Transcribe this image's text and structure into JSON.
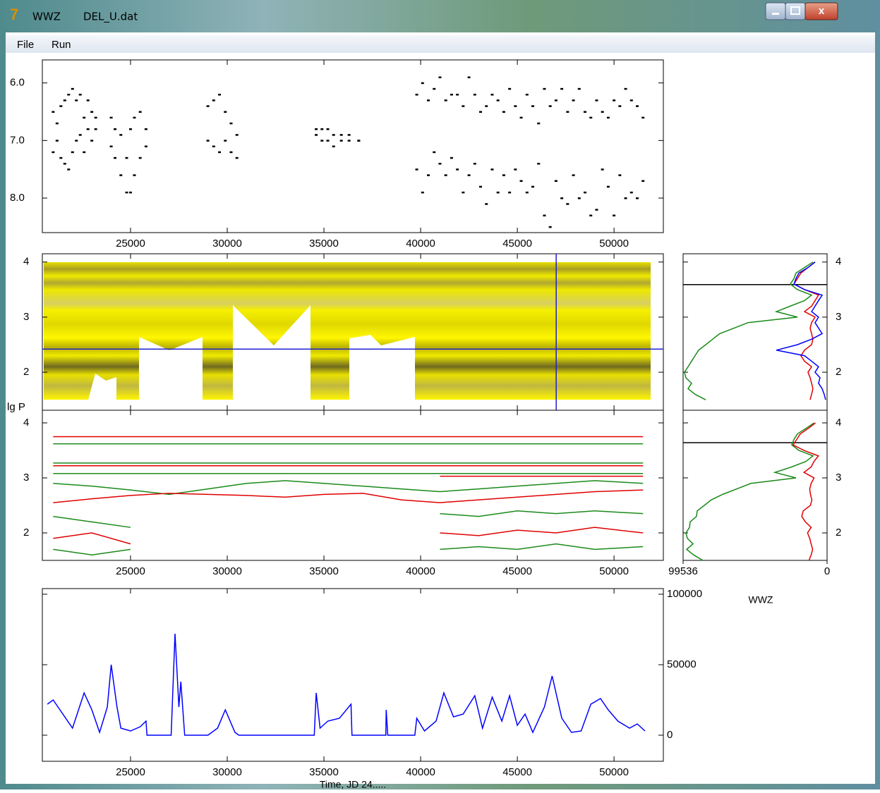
{
  "window": {
    "title": "WWZ",
    "file": "DEL_U.dat",
    "menu": [
      "File",
      "Run"
    ]
  },
  "chart_data": [
    {
      "type": "scatter",
      "xlim": [
        20440,
        52550
      ],
      "xticks": [
        25000,
        30000,
        35000,
        40000,
        45000,
        50000
      ],
      "ylim": [
        8.6,
        5.6
      ],
      "yticks": [
        {
          "value": 6,
          "label": "6.0"
        },
        {
          "value": 7,
          "label": "7.0"
        },
        {
          "value": 8,
          "label": "8.0"
        }
      ],
      "color": "#000000",
      "x": [
        21000,
        21200,
        21400,
        21600,
        21800,
        22000,
        22200,
        22400,
        22600,
        22800,
        23000,
        23200,
        24000,
        24200,
        24500,
        24800,
        25000,
        25200,
        25500,
        25800,
        29000,
        29300,
        29600,
        29900,
        30200,
        30500,
        34600,
        34900,
        35200,
        35500,
        35900,
        36300,
        36800,
        39800,
        40100,
        40400,
        40700,
        41000,
        41300,
        41600,
        41900,
        42200,
        42500,
        42800,
        43100,
        43400,
        43700,
        44000,
        44300,
        44600,
        44900,
        45200,
        45500,
        45800,
        46100,
        46400,
        46700,
        47000,
        47300,
        47600,
        47900,
        48200,
        48500,
        48800,
        49100,
        49400,
        49700,
        50000,
        50300,
        50600,
        50900,
        51200,
        51500
      ],
      "series": [
        {
          "values": [
            6.5,
            6.7,
            6.4,
            6.3,
            6.2,
            6.1,
            6.3,
            6.2,
            6.6,
            6.3,
            6.5,
            6.6,
            6.6,
            6.8,
            6.9,
            7.3,
            6.8,
            6.6,
            6.5,
            6.8,
            6.4,
            6.3,
            6.2,
            6.5,
            6.7,
            6.9,
            6.8,
            6.8,
            6.8,
            6.9,
            6.9,
            6.9,
            7.0,
            6.2,
            6.0,
            6.3,
            6.1,
            5.9,
            6.3,
            6.2,
            6.2,
            6.4,
            5.9,
            6.2,
            6.5,
            6.4,
            6.2,
            6.3,
            6.5,
            6.1,
            6.4,
            6.6,
            6.2,
            6.4,
            6.7,
            6.1,
            6.4,
            6.3,
            6.1,
            6.5,
            6.3,
            6.1,
            6.5,
            6.6,
            6.3,
            6.5,
            6.6,
            6.3,
            6.4,
            6.1,
            6.3,
            6.4,
            6.6
          ]
        },
        {
          "values": [
            7.2,
            7.0,
            7.3,
            7.4,
            7.5,
            7.2,
            7.0,
            6.9,
            7.2,
            6.8,
            7.0,
            6.8,
            7.1,
            7.3,
            7.6,
            7.9,
            7.9,
            7.6,
            7.3,
            7.1,
            7.0,
            7.1,
            7.2,
            7.0,
            7.2,
            7.3,
            6.9,
            7.0,
            7.0,
            7.1,
            7.0,
            7.0,
            7.0,
            7.5,
            7.9,
            7.6,
            7.2,
            7.4,
            7.6,
            7.3,
            7.5,
            7.9,
            7.6,
            7.4,
            7.8,
            8.1,
            7.5,
            7.9,
            7.6,
            7.9,
            7.5,
            7.7,
            7.9,
            7.8,
            7.4,
            8.3,
            8.5,
            7.7,
            8.0,
            8.1,
            7.6,
            8.0,
            7.9,
            8.3,
            8.2,
            7.5,
            7.8,
            8.3,
            7.6,
            8.0,
            7.9,
            8.0,
            7.7
          ]
        }
      ]
    },
    {
      "type": "heatmap",
      "xlim": [
        20440,
        52550
      ],
      "xticks": [
        25000,
        30000,
        35000,
        40000,
        45000,
        50000
      ],
      "ylim": [
        1.31,
        4.15
      ],
      "yticks": [
        2,
        3,
        4
      ],
      "cursor": {
        "x": 47010,
        "y": 2.42,
        "color": "#2020d0"
      }
    },
    {
      "type": "line",
      "y_label": "lg P",
      "xlim": [
        20440,
        52550
      ],
      "xticks": [
        25000,
        30000,
        35000,
        40000,
        45000,
        50000
      ],
      "ylim": [
        1.5,
        4.23
      ],
      "yticks": [
        2,
        3,
        4
      ],
      "x": [
        21000,
        23000,
        25000,
        27000,
        29000,
        31000,
        33000,
        35000,
        37000,
        39000,
        41000,
        43000,
        45000,
        47000,
        49000,
        51500
      ],
      "series": [
        {
          "color": "#e00000",
          "values": [
            3.75,
            3.75,
            3.75,
            3.75,
            3.75,
            3.75,
            3.75,
            3.75,
            3.75,
            3.75,
            3.75,
            3.75,
            3.75,
            3.75,
            3.75,
            3.75
          ]
        },
        {
          "color": "#1a8a1a",
          "values": [
            3.62,
            3.62,
            3.62,
            3.62,
            3.62,
            3.62,
            3.62,
            3.62,
            3.62,
            3.62,
            3.62,
            3.62,
            3.62,
            3.62,
            3.62,
            3.62
          ]
        },
        {
          "color": "#1a8a1a",
          "values": [
            3.27,
            3.27,
            3.27,
            3.27,
            3.27,
            3.27,
            3.27,
            3.27,
            3.27,
            3.27,
            3.27,
            3.27,
            3.27,
            3.27,
            3.27,
            3.27
          ]
        },
        {
          "color": "#e00000",
          "values": [
            3.22,
            3.22,
            3.22,
            3.22,
            3.22,
            3.22,
            3.22,
            3.22,
            3.22,
            3.22,
            3.22,
            3.22,
            3.22,
            3.22,
            3.22,
            3.22
          ]
        },
        {
          "color": "#1a8a1a",
          "values": [
            3.08,
            3.08,
            3.08,
            3.08,
            3.08,
            3.08,
            3.08,
            3.08,
            3.08,
            3.08,
            3.08,
            3.08,
            3.08,
            3.08,
            3.08,
            3.08
          ]
        },
        {
          "color": "#e00000",
          "values": [
            null,
            null,
            null,
            null,
            null,
            null,
            null,
            null,
            null,
            null,
            3.03,
            3.03,
            3.03,
            3.03,
            3.03,
            3.03
          ]
        },
        {
          "color": "#1a8a1a",
          "values": [
            2.9,
            2.85,
            2.78,
            2.7,
            2.8,
            2.9,
            2.95,
            2.9,
            2.85,
            2.8,
            2.75,
            2.8,
            2.85,
            2.9,
            2.95,
            2.9
          ]
        },
        {
          "color": "#e00000",
          "values": [
            2.55,
            2.62,
            2.68,
            2.72,
            2.7,
            2.68,
            2.65,
            2.7,
            2.72,
            2.6,
            2.55,
            2.6,
            2.65,
            2.7,
            2.75,
            2.78
          ]
        },
        {
          "color": "#1a8a1a",
          "values": [
            2.3,
            2.2,
            2.1,
            null,
            2.3,
            null,
            null,
            2.2,
            null,
            null,
            2.35,
            2.3,
            2.4,
            2.35,
            2.4,
            2.35
          ]
        },
        {
          "color": "#e00000",
          "values": [
            1.9,
            2.0,
            1.8,
            null,
            2.0,
            null,
            null,
            1.9,
            null,
            null,
            2.0,
            1.95,
            2.05,
            2.0,
            2.1,
            2.0
          ]
        },
        {
          "color": "#1a8a1a",
          "values": [
            1.7,
            1.6,
            1.7,
            null,
            1.65,
            null,
            null,
            1.7,
            null,
            null,
            1.7,
            1.75,
            1.7,
            1.8,
            1.7,
            1.75
          ]
        }
      ]
    },
    {
      "type": "line",
      "x_label": "Time, JD 24.....",
      "xlim": [
        20440,
        52550
      ],
      "xticks": [
        25000,
        30000,
        35000,
        40000,
        45000,
        50000
      ],
      "ylim": [
        -18500,
        104000
      ],
      "yticks": [
        0,
        50000,
        100000
      ],
      "x": [
        20700,
        21000,
        21500,
        22000,
        22600,
        23000,
        23400,
        23800,
        24000,
        24300,
        24500,
        25000,
        25500,
        25800,
        25850,
        27100,
        27300,
        27500,
        27600,
        27800,
        29000,
        29500,
        29900,
        30400,
        30600,
        34500,
        34600,
        34800,
        35200,
        35800,
        36400,
        36450,
        38200,
        38220,
        38300,
        39700,
        39800,
        40200,
        40800,
        41200,
        41700,
        42200,
        42800,
        43200,
        43700,
        44200,
        44600,
        45000,
        45400,
        45800,
        46400,
        46800,
        47300,
        47800,
        48300,
        48800,
        49300,
        49700,
        50200,
        50800,
        51200,
        51600
      ],
      "series": [
        {
          "color": "#0000ff",
          "values": [
            22000,
            25000,
            15000,
            5000,
            30000,
            18000,
            2000,
            20000,
            50000,
            20000,
            5000,
            3000,
            6000,
            10000,
            0,
            0,
            72000,
            20000,
            38000,
            0,
            0,
            5000,
            18000,
            2000,
            0,
            0,
            30000,
            5000,
            10000,
            12000,
            22000,
            0,
            0,
            18000,
            0,
            0,
            12000,
            3000,
            10000,
            30000,
            13000,
            15000,
            28000,
            5000,
            27000,
            10000,
            28000,
            7000,
            15000,
            2000,
            20000,
            42000,
            12000,
            2000,
            3000,
            22000,
            26000,
            18000,
            10000,
            5000,
            8000,
            3000
          ]
        }
      ]
    },
    {
      "type": "profile",
      "xlim": [
        99536,
        0
      ],
      "ylim": [
        1.31,
        4.15
      ],
      "yticks": [
        2,
        3,
        4
      ],
      "marker": 3.59,
      "y": [
        4.0,
        3.9,
        3.8,
        3.7,
        3.6,
        3.5,
        3.4,
        3.3,
        3.2,
        3.1,
        3.0,
        2.9,
        2.8,
        2.7,
        2.6,
        2.5,
        2.4,
        2.3,
        2.2,
        2.1,
        2.0,
        1.9,
        1.8,
        1.7,
        1.6,
        1.5
      ],
      "series": [
        {
          "color": "#1a8a1a",
          "values": [
            9760,
            15600,
            21500,
            22900,
            25400,
            20500,
            10700,
            15600,
            25400,
            35100,
            20500,
            54700,
            64400,
            74200,
            79100,
            83900,
            88800,
            91300,
            93700,
            96100,
            98600,
            97600,
            93700,
            96100,
            91300,
            83900
          ]
        },
        {
          "color": "#e00000",
          "values": [
            8300,
            13200,
            18100,
            20500,
            22900,
            15600,
            5900,
            8300,
            10700,
            15600,
            8300,
            10700,
            11700,
            10700,
            9800,
            10700,
            15600,
            18100,
            15600,
            10700,
            13200,
            11700,
            10700,
            9800,
            10700,
            11700
          ]
        },
        {
          "color": "#0000ff",
          "values": [
            8300,
            13200,
            19500,
            21500,
            22900,
            15600,
            3400,
            5900,
            8300,
            10700,
            5900,
            8300,
            5900,
            3400,
            10700,
            20500,
            35100,
            15600,
            10700,
            5900,
            8300,
            4900,
            5900,
            3400,
            2000,
            1000
          ]
        }
      ]
    },
    {
      "type": "profile",
      "x_label": "WWZ",
      "xlim": [
        99536,
        0
      ],
      "xticks": [
        99536,
        0
      ],
      "ylim": [
        1.5,
        4.23
      ],
      "yticks": [
        2,
        3,
        4
      ],
      "marker": 3.64,
      "y": [
        4.0,
        3.9,
        3.8,
        3.7,
        3.6,
        3.5,
        3.4,
        3.3,
        3.2,
        3.1,
        3.0,
        2.9,
        2.8,
        2.7,
        2.6,
        2.5,
        2.4,
        2.3,
        2.2,
        2.1,
        2.0,
        1.9,
        1.8,
        1.7,
        1.6,
        1.5
      ],
      "series": [
        {
          "color": "#1a8a1a",
          "values": [
            9000,
            14600,
            20500,
            22900,
            24400,
            19500,
            9700,
            14600,
            24400,
            36100,
            21500,
            52700,
            62400,
            72200,
            80100,
            84900,
            89800,
            90300,
            94700,
            95100,
            97600,
            96600,
            92700,
            97100,
            92300,
            85900
          ]
        },
        {
          "color": "#e00000",
          "values": [
            8000,
            13000,
            18500,
            21000,
            23500,
            16000,
            6000,
            9000,
            11000,
            16000,
            9000,
            11000,
            12000,
            11500,
            10500,
            11500,
            16500,
            17500,
            15000,
            11000,
            13500,
            12000,
            11000,
            10000,
            11000,
            12500
          ]
        }
      ]
    }
  ]
}
